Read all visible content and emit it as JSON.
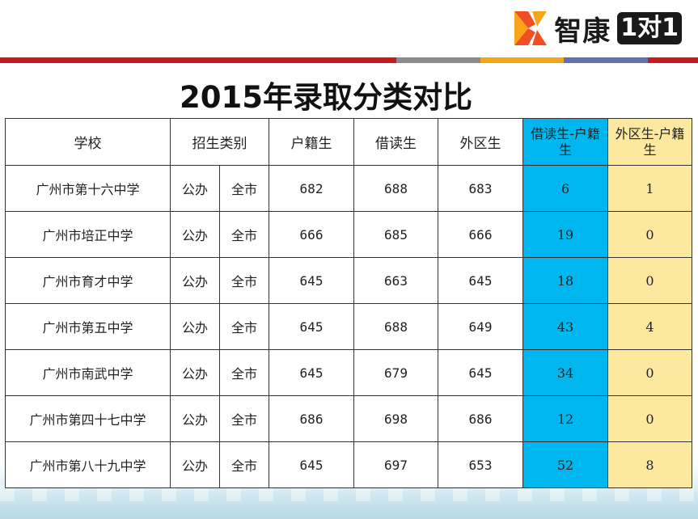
{
  "brand": {
    "name": "智康",
    "badge": "1对1"
  },
  "title": "2015年录取分类对比",
  "table": {
    "headers": {
      "school": "学校",
      "category": "招生类别",
      "huji": "户籍生",
      "jiedu": "借读生",
      "waiqu": "外区生",
      "diff_jiedu": "借读生-户籍生",
      "diff_waiqu": "外区生-户籍生"
    },
    "rows": [
      {
        "school": "广州市第十六中学",
        "type": "公办",
        "scope": "全市",
        "huji": "682",
        "jiedu": "688",
        "waiqu": "683",
        "diff_jiedu": "6",
        "diff_waiqu": "1"
      },
      {
        "school": "广州市培正中学",
        "type": "公办",
        "scope": "全市",
        "huji": "666",
        "jiedu": "685",
        "waiqu": "666",
        "diff_jiedu": "19",
        "diff_waiqu": "0"
      },
      {
        "school": "广州市育才中学",
        "type": "公办",
        "scope": "全市",
        "huji": "645",
        "jiedu": "663",
        "waiqu": "645",
        "diff_jiedu": "18",
        "diff_waiqu": "0"
      },
      {
        "school": "广州市第五中学",
        "type": "公办",
        "scope": "全市",
        "huji": "645",
        "jiedu": "688",
        "waiqu": "649",
        "diff_jiedu": "43",
        "diff_waiqu": "4"
      },
      {
        "school": "广州市南武中学",
        "type": "公办",
        "scope": "全市",
        "huji": "645",
        "jiedu": "679",
        "waiqu": "645",
        "diff_jiedu": "34",
        "diff_waiqu": "0"
      },
      {
        "school": "广州市第四十七中学",
        "type": "公办",
        "scope": "全市",
        "huji": "686",
        "jiedu": "698",
        "waiqu": "686",
        "diff_jiedu": "12",
        "diff_waiqu": "0"
      },
      {
        "school": "广州市第八十九中学",
        "type": "公办",
        "scope": "全市",
        "huji": "645",
        "jiedu": "697",
        "waiqu": "653",
        "diff_jiedu": "52",
        "diff_waiqu": "8"
      }
    ]
  },
  "colors": {
    "jiedu_text": "#e8141b",
    "waiqu_text": "#10a33a",
    "diff_jiedu_bg": "#00b6ee",
    "diff_waiqu_bg": "#fde8a0",
    "diff_waiqu_text": "#e37b12"
  }
}
